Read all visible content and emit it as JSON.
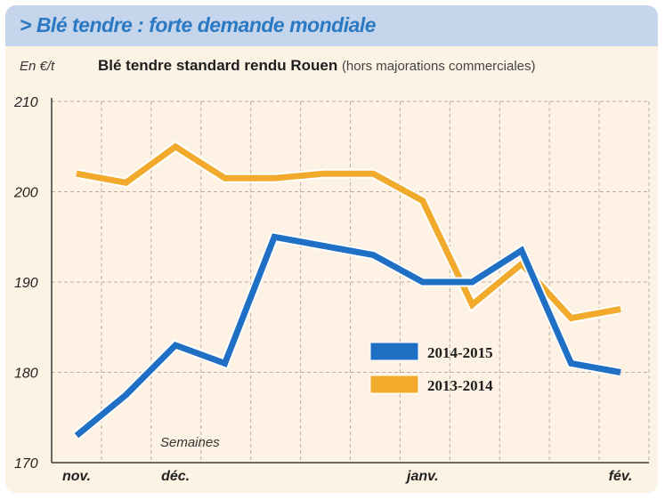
{
  "banner": {
    "title": "> Blé tendre : forte demande mondiale"
  },
  "chart_data": {
    "type": "line",
    "title": "Blé tendre standard rendu Rouen",
    "subtitle": "(hors majorations commerciales)",
    "ylabel": "En €/t",
    "xlabel": "Semaines",
    "ylim": [
      170,
      210
    ],
    "yticks": [
      170,
      180,
      190,
      200,
      210
    ],
    "x_tick_labels": [
      {
        "label": "nov.",
        "at": 0
      },
      {
        "label": "déc.",
        "at": 2
      },
      {
        "label": "janv.",
        "at": 7
      },
      {
        "label": "fév.",
        "at": 11
      }
    ],
    "x_count": 12,
    "legend_position": "lower-right",
    "series": [
      {
        "name": "2014-2015",
        "color": "#1f6fc4",
        "values": [
          173,
          177.5,
          183,
          181,
          195,
          194,
          193,
          190,
          190,
          193.5,
          181,
          180
        ]
      },
      {
        "name": "2013-2014",
        "color": "#f2aa2c",
        "values": [
          202,
          201,
          205,
          201.5,
          201.5,
          202,
          202,
          199,
          187.5,
          192,
          186,
          187
        ]
      }
    ]
  }
}
